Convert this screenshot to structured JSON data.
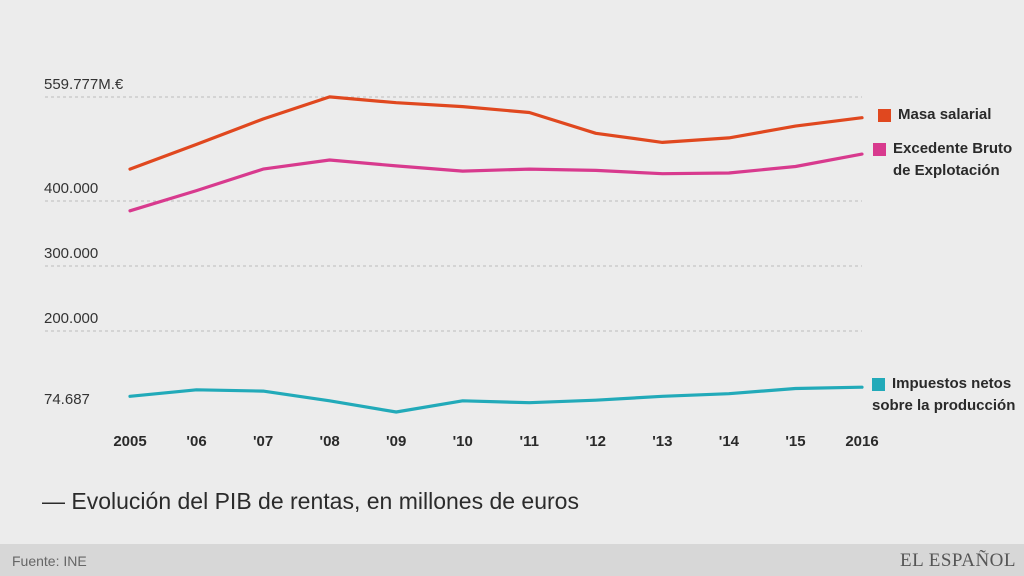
{
  "chart_data": {
    "type": "line",
    "title": "— Evolución del PIB de rentas, en millones de euros",
    "categories": [
      "2005",
      "'06",
      "'07",
      "'08",
      "'09",
      "'10",
      "'11",
      "'12",
      "'13",
      "'14",
      "'15",
      "2016"
    ],
    "y_ticks": [
      {
        "value": 559777,
        "label": "559.777M.€"
      },
      {
        "value": 400000,
        "label": "400.000"
      },
      {
        "value": 300000,
        "label": "300.000"
      },
      {
        "value": 200000,
        "label": "200.000"
      },
      {
        "value": 74687,
        "label": "74.687"
      }
    ],
    "ylim": [
      74687,
      559777
    ],
    "grid": true,
    "series": [
      {
        "name": "Masa salarial",
        "color": "#e0481f",
        "values": [
          449000,
          487000,
          526000,
          560000,
          551000,
          545000,
          536000,
          504000,
          490000,
          497000,
          515000,
          528000
        ]
      },
      {
        "name": "Excedente Bruto de Explotación",
        "color": "#d83a8e",
        "values": [
          385000,
          416000,
          449000,
          463000,
          454000,
          446000,
          449000,
          447000,
          442000,
          443000,
          453000,
          472000
        ]
      },
      {
        "name": "Impuestos netos sobre la producción",
        "color": "#22aab9",
        "values": [
          99000,
          109000,
          107000,
          92000,
          74687,
          92000,
          89000,
          93000,
          99000,
          103000,
          111000,
          113000
        ]
      }
    ]
  },
  "legend": {
    "masa": {
      "line1": "Masa salarial",
      "line2": ""
    },
    "excedente": {
      "line1": "Excedente Bruto",
      "line2": "de Explotación"
    },
    "impuestos": {
      "line1": "Impuestos netos",
      "line2": "sobre la producción"
    }
  },
  "footer": {
    "source": "Fuente: INE",
    "brand": "EL ESPAÑOL"
  }
}
